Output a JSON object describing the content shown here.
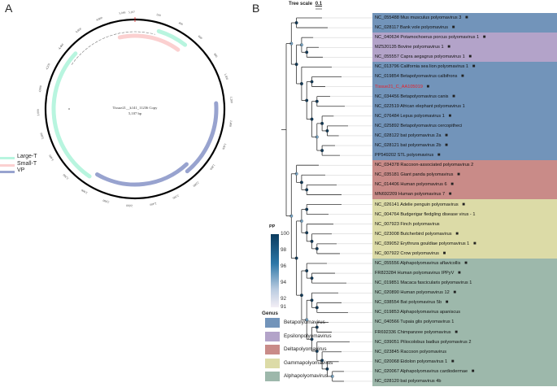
{
  "panels": {
    "a": "A",
    "b": "B"
  },
  "plasmid": {
    "name": "Tissue21__k141_11236 Copy",
    "length": "5,107 bp",
    "ticks": [
      "200",
      "400",
      "600",
      "800",
      "1,000",
      "1,200",
      "1,400",
      "1,600",
      "1,800",
      "2,000",
      "2,200",
      "2,400",
      "2,600",
      "2,800",
      "3,000",
      "3,200",
      "3,400",
      "3,600",
      "3,800",
      "4,000",
      "4,200",
      "4,400",
      "4,600",
      "4,800",
      "5,000",
      "5,107"
    ],
    "legend": [
      {
        "label": "Large-T",
        "color": "#b8f5df"
      },
      {
        "label": "Small-T",
        "color": "#fbd0d0"
      },
      {
        "label": "VP",
        "color": "#98a3cf"
      }
    ]
  },
  "tree": {
    "scale_label": "Tree scale",
    "scale_value": "0.1",
    "pp_legend": {
      "title": "PP",
      "ticks": [
        "100",
        "98",
        "96",
        "94",
        "92",
        "91"
      ],
      "color_high": "#0b3b5e",
      "color_low": "#f3eef5"
    },
    "genus_legend": {
      "title": "Genus",
      "items": [
        {
          "label": "Betapolyomavirus",
          "color": "#7294ba"
        },
        {
          "label": "Epsilonpolyomavirus",
          "color": "#b3a3c9"
        },
        {
          "label": "Deltapolyomavirus",
          "color": "#c98b88"
        },
        {
          "label": "Gammapolyomavirus",
          "color": "#dcdba7"
        },
        {
          "label": "Alphapolyomavirus",
          "color": "#9db8ab"
        }
      ]
    },
    "highlight_color": "#e8202a",
    "leaves": [
      {
        "label": "NC_055488 Mus musculus polyomavirus 3",
        "genus": 0,
        "host": "rodent-icon"
      },
      {
        "label": "NC_028117 Bank vole polyomavirus",
        "genus": 0,
        "host": "rodent-icon"
      },
      {
        "label": "NC_040634 Potamochoerus porcus polyomavirus 1",
        "genus": 1,
        "host": "pig-icon"
      },
      {
        "label": "MZ520135 Bovine polyomavirus 1",
        "genus": 1,
        "host": "cow-icon"
      },
      {
        "label": "NC_055557 Capra aegagrus polyomavirus 1",
        "genus": 1,
        "host": "goat-icon"
      },
      {
        "label": "NC_013796 California sea lion polyomavirus 1",
        "genus": 0,
        "host": "sea-lion-icon"
      },
      {
        "label": "NC_019854 Betapolyomavirus calbifrons",
        "genus": 0,
        "host": "bird-icon"
      },
      {
        "label": "Tissue21_C_AA105019",
        "genus": 0,
        "host": "dog-icon",
        "highlight": true
      },
      {
        "label": "NC_034456 Betapolyomavirus canis",
        "genus": 0,
        "host": "dog-icon"
      },
      {
        "label": "NC_022519 African elephant polyomavirus 1",
        "genus": 0
      },
      {
        "label": "NC_076484 Lepus polyomavirus 1",
        "genus": 0,
        "host": "rabbit-icon"
      },
      {
        "label": "NC_025892 Betapolyomavirus cercopitheci",
        "genus": 0
      },
      {
        "label": "NC_028122 bat polyomavirus 2a",
        "genus": 0,
        "host": "bat-icon"
      },
      {
        "label": "NC_028121 bat polyomavirus 2b",
        "genus": 0,
        "host": "bat-icon"
      },
      {
        "label": "PP549202 STL polyomavirus",
        "genus": 0,
        "host": "human-icon"
      },
      {
        "label": "NC_034378 Raccoon-associated polyomavirus 2",
        "genus": 2
      },
      {
        "label": "NC_035181 Giant panda polyomavirus",
        "genus": 2,
        "host": "panda-icon"
      },
      {
        "label": "NC_014406 Human polyomavirus 6",
        "genus": 2,
        "host": "human-icon"
      },
      {
        "label": "MN692209 Human polyomavirus 7",
        "genus": 2,
        "host": "human-icon"
      },
      {
        "label": "NC_026141 Adelie penguin polyomavirus",
        "genus": 3,
        "host": "penguin-icon"
      },
      {
        "label": "NC_004764 Budgerigar fledgling disease virus - 1",
        "genus": 3
      },
      {
        "label": "NC_007923 Finch polyomavirus",
        "genus": 3
      },
      {
        "label": "NC_023008 Butcherbird polyomavirus",
        "genus": 3,
        "host": "bird-icon"
      },
      {
        "label": "NC_039052 Erythrura gouldiae polyomavirus 1",
        "genus": 3,
        "host": "bird-icon"
      },
      {
        "label": "NC_007922 Crow polyomavirus",
        "genus": 3,
        "host": "bird-icon"
      },
      {
        "label": "NC_055556 Alphapolyomavirus aflavicollis",
        "genus": 4,
        "host": "rodent-icon"
      },
      {
        "label": "FR823284 Human polyomavirus IPPyV",
        "genus": 4,
        "host": "human-icon"
      },
      {
        "label": "NC_019851 Macaca fascicularis polyomavirus 1",
        "genus": 4
      },
      {
        "label": "NC_020890 Human polyomavirus 12",
        "genus": 4,
        "host": "human-icon"
      },
      {
        "label": "NC_038554 Bat polyomavirus 5b",
        "genus": 4,
        "host": "bat-icon"
      },
      {
        "label": "NC_019853 Alphapolyomavirus apaniscus",
        "genus": 4
      },
      {
        "label": "NC_040566 Tupaia glis polyomavirus 1",
        "genus": 4
      },
      {
        "label": "FR692336 Chimpanzee polyomavirus",
        "genus": 4,
        "host": "chimpanzee-icon"
      },
      {
        "label": "NC_039051 Piliocolobus badius polyomavirus 2",
        "genus": 4
      },
      {
        "label": "NC_023845 Raccoon polyomavirus",
        "genus": 4
      },
      {
        "label": "NC_020068 Eidolon polyomavirus 1",
        "genus": 4,
        "host": "bat-icon"
      },
      {
        "label": "NC_020067 Alphapolyomavirus cardiodermae",
        "genus": 4,
        "host": "bat-icon"
      },
      {
        "label": "NC_028120 bat polyomavirus 4b",
        "genus": 4
      }
    ]
  }
}
